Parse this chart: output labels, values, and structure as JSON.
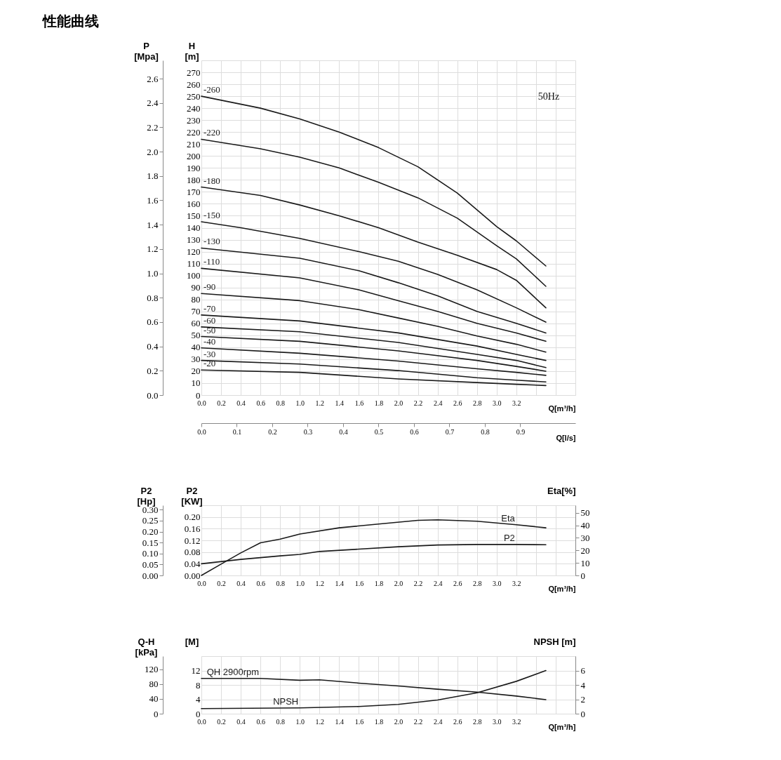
{
  "chart_data": [
    {
      "type": "line",
      "title": "性能曲线",
      "xlabel": "Q[m³/h]",
      "ylabel": "H\n[m]",
      "y3label": "P\n[Mpa]",
      "x2label": "Q[l/s]",
      "grid": true,
      "xlim": [
        0,
        3.8
      ],
      "xticks": [
        {
          "value": 0,
          "label": "0.0"
        },
        0.2,
        0.4,
        0.6,
        0.8,
        {
          "value": 1,
          "label": "1.0"
        },
        1.2,
        1.4,
        1.6,
        1.8,
        {
          "value": 2,
          "label": "2.0"
        },
        2.2,
        2.4,
        2.6,
        2.8,
        {
          "value": 3,
          "label": "3.0"
        },
        3.2,
        {
          "value": 3.4,
          "label": null
        },
        {
          "value": 3.6,
          "label": null
        }
      ],
      "x2lim": [
        0,
        1.0556
      ],
      "x2ticks": [
        {
          "value": 0,
          "label": "0.0"
        },
        0.1,
        0.2,
        0.3,
        0.4,
        0.5,
        0.6,
        0.7,
        0.8,
        0.9
      ],
      "ylim": [
        0,
        280
      ],
      "yticks": [
        0,
        10,
        20,
        30,
        40,
        50,
        60,
        70,
        80,
        90,
        100,
        110,
        120,
        130,
        140,
        150,
        160,
        170,
        180,
        190,
        200,
        210,
        220,
        230,
        240,
        250,
        260,
        270
      ],
      "y3lim": [
        0,
        2.75
      ],
      "y3ticks": [
        {
          "value": 0,
          "label": "0.0"
        },
        0.2,
        0.4,
        0.6,
        0.8,
        {
          "value": 1,
          "label": "1.0"
        },
        1.2,
        1.4,
        1.6,
        1.8,
        {
          "value": 2,
          "label": "2.0"
        },
        2.2,
        2.4,
        2.6
      ],
      "annotations": [
        "50Hz"
      ],
      "series": [
        {
          "name": "-260",
          "color": "#1a1a1a",
          "x": [
            0,
            0.6,
            1.0,
            1.4,
            1.8,
            2.2,
            2.6,
            3.0,
            3.2,
            3.5
          ],
          "values": [
            250,
            240,
            231,
            220,
            207,
            191,
            169,
            141,
            129,
            108
          ]
        },
        {
          "name": "-220",
          "color": "#1a1a1a",
          "x": [
            0,
            0.6,
            1.0,
            1.4,
            1.8,
            2.2,
            2.6,
            3.0,
            3.2,
            3.5
          ],
          "values": [
            214,
            206,
            199,
            190,
            178,
            165,
            148,
            125,
            114,
            91
          ]
        },
        {
          "name": "-180",
          "color": "#1a1a1a",
          "x": [
            0,
            0.6,
            1.0,
            1.4,
            1.8,
            2.2,
            2.6,
            3.0,
            3.2,
            3.5
          ],
          "values": [
            174,
            167,
            159,
            150,
            140,
            128,
            117,
            105,
            96,
            73
          ]
        },
        {
          "name": "-150",
          "color": "#1a1a1a",
          "x": [
            0,
            0.4,
            1.0,
            1.6,
            2.0,
            2.4,
            2.8,
            3.2,
            3.5
          ],
          "values": [
            145,
            140,
            131,
            120,
            112,
            101,
            88,
            73,
            61
          ]
        },
        {
          "name": "-130",
          "color": "#1a1a1a",
          "x": [
            0,
            1.0,
            1.6,
            2.0,
            2.4,
            2.8,
            3.2,
            3.5
          ],
          "values": [
            123,
            114.5,
            104,
            94,
            83,
            70,
            60,
            52
          ]
        },
        {
          "name": "-110",
          "color": "#1a1a1a",
          "x": [
            0,
            1.0,
            1.6,
            2.0,
            2.4,
            2.8,
            3.2,
            3.5
          ],
          "values": [
            106,
            98,
            88,
            79,
            70,
            60,
            52,
            45
          ]
        },
        {
          "name": "-90",
          "color": "#1a1a1a",
          "x": [
            0,
            1.0,
            1.6,
            2.0,
            2.4,
            2.8,
            3.2,
            3.5
          ],
          "values": [
            85,
            79,
            71.5,
            64.5,
            57.5,
            49.5,
            42.5,
            36
          ]
        },
        {
          "name": "-70",
          "color": "#1a1a1a",
          "x": [
            0,
            1.0,
            2.0,
            2.8,
            3.2,
            3.5
          ],
          "values": [
            67,
            62,
            52,
            41,
            34,
            29
          ]
        },
        {
          "name": "-60",
          "color": "#1a1a1a",
          "x": [
            0,
            1.0,
            2.0,
            2.8,
            3.2,
            3.5
          ],
          "values": [
            57,
            53,
            44,
            34,
            29,
            23
          ]
        },
        {
          "name": "-50",
          "color": "#1a1a1a",
          "x": [
            0,
            1.0,
            2.0,
            2.8,
            3.2,
            3.5
          ],
          "values": [
            49,
            45,
            37,
            29,
            24,
            20
          ]
        },
        {
          "name": "-40",
          "color": "#1a1a1a",
          "x": [
            0,
            1.0,
            2.0,
            2.8,
            3.2,
            3.5
          ],
          "values": [
            39.5,
            35,
            28.5,
            22,
            19,
            16.5
          ]
        },
        {
          "name": "-30",
          "color": "#1a1a1a",
          "x": [
            0,
            1.0,
            2.0,
            2.8,
            3.2,
            3.5
          ],
          "values": [
            29,
            26,
            20.5,
            14.5,
            12.5,
            11
          ]
        },
        {
          "name": "-20",
          "color": "#1a1a1a",
          "x": [
            0,
            1.0,
            2.0,
            2.8,
            3.2,
            3.5
          ],
          "values": [
            21,
            19,
            13.5,
            10.5,
            9,
            8
          ]
        }
      ]
    },
    {
      "type": "line",
      "xlabel": "Q[m³/h]",
      "ylabel": "P2\n[KW]",
      "y3label": "P2\n[Hp]",
      "y2label": "Eta[%]",
      "grid": true,
      "xlim": [
        0,
        3.8
      ],
      "xticks": [
        {
          "value": 0,
          "label": "0.0"
        },
        0.2,
        0.4,
        0.6,
        0.8,
        {
          "value": 1,
          "label": "1.0"
        },
        1.2,
        1.4,
        1.6,
        1.8,
        {
          "value": 2,
          "label": "2.0"
        },
        2.2,
        2.4,
        2.6,
        2.8,
        {
          "value": 3,
          "label": "3.0"
        },
        3.2,
        {
          "value": 3.4,
          "label": null
        },
        {
          "value": 3.6,
          "label": null
        }
      ],
      "ylim": [
        0,
        0.24
      ],
      "yticks": [
        {
          "value": 0,
          "label": "0.00"
        },
        0.04,
        0.08,
        0.12,
        0.16,
        {
          "value": 0.2,
          "label": "0.20"
        }
      ],
      "y2lim": [
        0,
        56
      ],
      "y2ticks": [
        0,
        10,
        20,
        30,
        40,
        50
      ],
      "y3lim": [
        0,
        0.32
      ],
      "y3ticks": [
        {
          "value": 0,
          "label": "0.00"
        },
        0.05,
        {
          "value": 0.1,
          "label": "0.10"
        },
        0.15,
        {
          "value": 0.2,
          "label": "0.20"
        },
        0.25,
        {
          "value": 0.3,
          "label": "0.30"
        }
      ],
      "series": [
        {
          "name": "P2",
          "color": "#1a1a1a",
          "x": [
            0,
            0.4,
            0.8,
            1.0,
            1.2,
            1.6,
            2.0,
            2.4,
            2.8,
            3.2,
            3.5
          ],
          "values": [
            0.04,
            0.055,
            0.067,
            0.072,
            0.082,
            0.09,
            0.098,
            0.104,
            0.106,
            0.106,
            0.105
          ]
        },
        {
          "name": "Eta",
          "color": "#1a1a1a",
          "axis": "y2",
          "x": [
            0,
            0.2,
            0.4,
            0.6,
            0.8,
            1.0,
            1.4,
            1.8,
            2.2,
            2.4,
            2.8,
            3.2,
            3.5
          ],
          "values": [
            0,
            9,
            18,
            26,
            29,
            33,
            38,
            41,
            44,
            44.4,
            43.3,
            40.5,
            38
          ]
        }
      ]
    },
    {
      "type": "line",
      "xlabel": "Q[m³/h]",
      "ylabel": "[M]",
      "y3label": "Q-H\n[kPa]",
      "y2label": "NPSH [m]",
      "grid": true,
      "xlim": [
        0,
        3.8
      ],
      "xticks": [
        {
          "value": 0,
          "label": "0.0"
        },
        0.2,
        0.4,
        0.6,
        0.8,
        {
          "value": 1,
          "label": "1.0"
        },
        1.2,
        1.4,
        1.6,
        1.8,
        {
          "value": 2,
          "label": "2.0"
        },
        2.2,
        2.4,
        2.6,
        2.8,
        {
          "value": 3,
          "label": "3.0"
        },
        3.2,
        {
          "value": 3.4,
          "label": null
        },
        {
          "value": 3.6,
          "label": null
        }
      ],
      "ylim": [
        0,
        16
      ],
      "yticks": [
        0,
        4,
        8,
        12
      ],
      "y2lim": [
        0,
        8
      ],
      "y2ticks": [
        0,
        2,
        4,
        6
      ],
      "y3lim": [
        0,
        156
      ],
      "y3ticks": [
        0,
        40,
        80,
        120
      ],
      "series": [
        {
          "name": "QH 2900rpm",
          "color": "#1a1a1a",
          "x": [
            0,
            0.6,
            1.0,
            1.2,
            1.6,
            2.0,
            2.4,
            2.8,
            3.2,
            3.5
          ],
          "values": [
            9.8,
            9.8,
            9.3,
            9.4,
            8.5,
            7.7,
            6.8,
            6.0,
            4.9,
            3.9
          ]
        },
        {
          "name": "NPSH",
          "color": "#1a1a1a",
          "axis": "y2",
          "x": [
            0,
            1.0,
            1.6,
            2.0,
            2.4,
            2.8,
            3.2,
            3.5
          ],
          "values": [
            0.7,
            0.8,
            1.0,
            1.3,
            1.9,
            2.9,
            4.5,
            6.0
          ]
        }
      ]
    }
  ]
}
